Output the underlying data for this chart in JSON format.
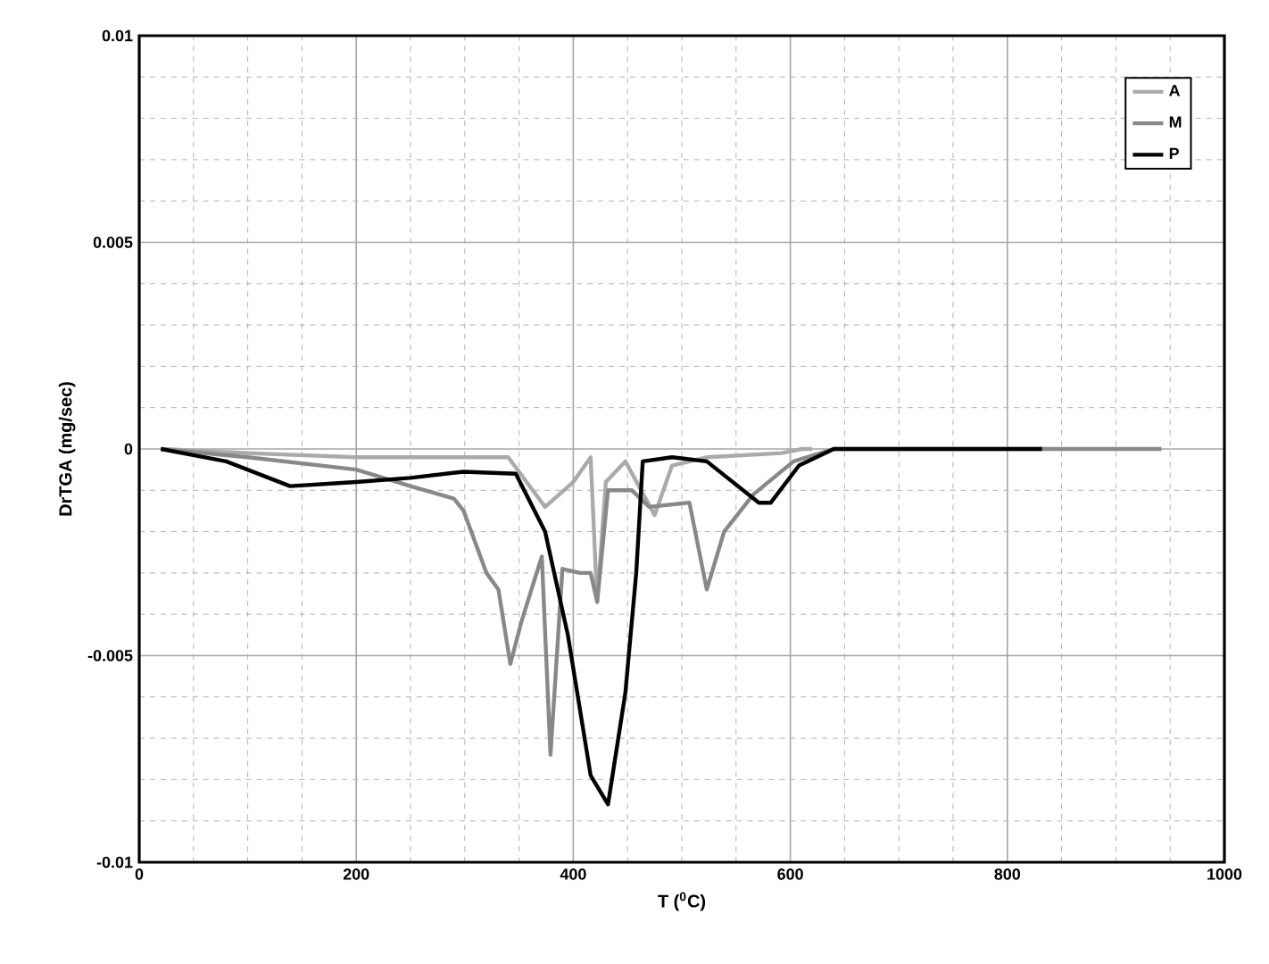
{
  "chart_data": {
    "type": "line",
    "xlabel": "T ($^{0}$C)",
    "ylabel": "DrTGA (mg/sec)",
    "xlim": [
      0,
      1000
    ],
    "ylim": [
      -0.01,
      0.01
    ],
    "xticks": [
      0,
      200,
      400,
      600,
      800,
      1000
    ],
    "yticks": [
      -0.01,
      -0.005,
      0,
      0.005,
      0.01
    ],
    "grid": true,
    "legend": "top right",
    "marker": "none",
    "line_style": "solid",
    "series": [
      {
        "name": "A",
        "color": "#aaaaaa",
        "x": [
          20,
          100,
          200,
          300,
          340,
          374,
          400,
          416,
          422,
          430,
          448,
          475,
          491,
          523,
          592,
          611,
          620
        ],
        "values": [
          0,
          -0.0001,
          -0.0002,
          -0.0002,
          -0.0002,
          -0.0014,
          -0.0008,
          -0.0002,
          -0.0037,
          -0.0008,
          -0.0003,
          -0.0016,
          -0.0004,
          -0.0002,
          -0.0001,
          0,
          0
        ]
      },
      {
        "name": "M",
        "color": "#888888",
        "x": [
          20,
          100,
          200,
          250,
          290,
          299,
          320,
          331,
          342,
          352,
          371,
          379,
          390,
          406,
          416,
          422,
          432,
          454,
          470,
          507,
          523,
          539,
          566,
          603,
          640,
          700,
          800,
          900,
          942
        ],
        "values": [
          0,
          -0.0002,
          -0.0005,
          -0.0009,
          -0.0012,
          -0.0015,
          -0.003,
          -0.0034,
          -0.0052,
          -0.0042,
          -0.0026,
          -0.0074,
          -0.0029,
          -0.003,
          -0.003,
          -0.0037,
          -0.001,
          -0.001,
          -0.0014,
          -0.0013,
          -0.0034,
          -0.002,
          -0.0011,
          -0.0003,
          0,
          0,
          0,
          0,
          0
        ]
      },
      {
        "name": "P",
        "color": "#000000",
        "x": [
          20,
          80,
          139,
          200,
          250,
          299,
          347,
          374,
          395,
          416,
          432,
          448,
          458,
          464,
          491,
          523,
          571,
          582,
          608,
          640,
          700,
          760,
          832
        ],
        "values": [
          0,
          -0.0003,
          -0.0009,
          -0.0008,
          -0.0007,
          -0.00055,
          -0.0006,
          -0.002,
          -0.0045,
          -0.0079,
          -0.0086,
          -0.0059,
          -0.003,
          -0.0003,
          -0.0002,
          -0.0003,
          -0.0013,
          -0.0013,
          -0.0004,
          0,
          0,
          0,
          0
        ]
      }
    ]
  }
}
